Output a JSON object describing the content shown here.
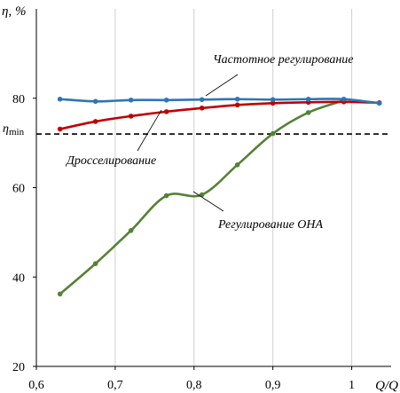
{
  "chart_data": {
    "type": "line",
    "ylabel": "η, %",
    "xlabel": "Q/Q",
    "xlim": [
      0.6,
      1.05
    ],
    "ylim": [
      20,
      100
    ],
    "xticks": [
      0.6,
      0.7,
      0.8,
      0.9,
      1.0
    ],
    "xtick_labels": [
      "0,6",
      "0,7",
      "0,8",
      "0,9",
      "1"
    ],
    "yticks": [
      20,
      40,
      60,
      80
    ],
    "ytick_labels": [
      "20",
      "40",
      "60",
      "80"
    ],
    "grid": "vertical",
    "reference_line": {
      "y": 72,
      "style": "dashed",
      "label_main": "η",
      "label_sub": "min"
    },
    "series": [
      {
        "name": "Частотное регулирование",
        "color": "#2e75b6",
        "x": [
          0.63,
          0.675,
          0.72,
          0.765,
          0.81,
          0.855,
          0.9,
          0.945,
          0.99,
          1.035
        ],
        "y": [
          79.8,
          79.3,
          79.6,
          79.6,
          79.7,
          79.8,
          79.7,
          79.8,
          79.8,
          78.9
        ]
      },
      {
        "name": "Дросселирование",
        "color": "#c00000",
        "x": [
          0.63,
          0.675,
          0.72,
          0.765,
          0.81,
          0.855,
          0.9,
          0.945,
          0.99,
          1.035
        ],
        "y": [
          73.1,
          74.8,
          76.0,
          77.0,
          77.8,
          78.5,
          78.9,
          79.1,
          79.2,
          79.0
        ]
      },
      {
        "name": "Регулирование ОНА",
        "color": "#548235",
        "x": [
          0.63,
          0.675,
          0.72,
          0.765,
          0.81,
          0.855,
          0.9,
          0.945,
          0.99
        ],
        "y": [
          36.2,
          43.0,
          50.4,
          58.2,
          58.4,
          65.1,
          72.1,
          76.8,
          79.5
        ]
      }
    ]
  }
}
